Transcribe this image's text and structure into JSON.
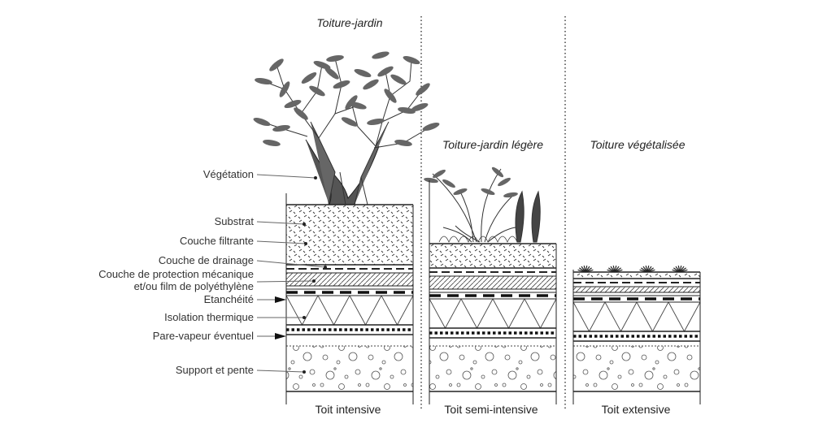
{
  "headings": {
    "intensive": "Toiture-jardin",
    "semi": "Toiture-jardin légère",
    "extensive": "Toiture végétalisée"
  },
  "layers": [
    "Végétation",
    "Substrat",
    "Couche filtrante",
    "Couche de drainage",
    "Couche de protection mécanique",
    "et/ou film de polyéthylène",
    "Etanchéité",
    "Isolation thermique",
    "Pare-vapeur éventuel",
    "Support et pente"
  ],
  "roof_types": [
    "Toit intensive",
    "Toit semi-intensive",
    "Toit extensive"
  ]
}
